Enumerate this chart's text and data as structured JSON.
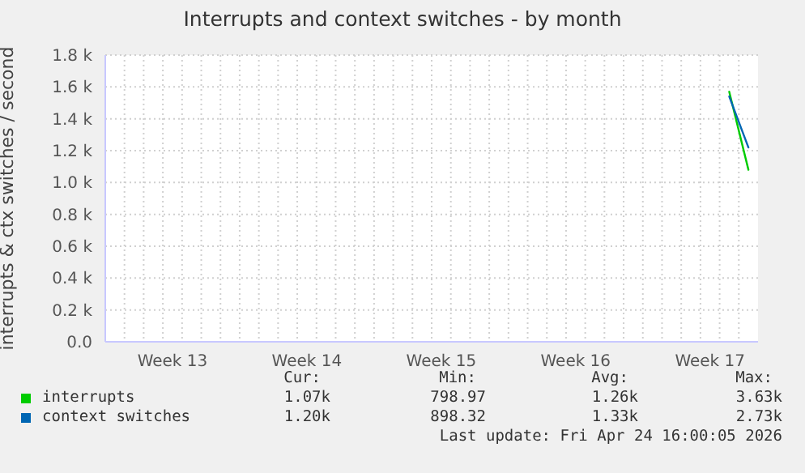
{
  "chart_data": {
    "type": "line",
    "title": "Interrupts and context switches - by month",
    "ylabel": "interrupts & ctx switches / second",
    "categories": [
      null,
      null,
      null,
      "Week 13",
      null,
      null,
      null,
      null,
      null,
      null,
      "Week 14",
      null,
      null,
      null,
      null,
      null,
      null,
      "Week 15",
      null,
      null,
      null,
      null,
      null,
      null,
      "Week 16",
      null,
      null,
      null,
      null,
      null,
      null,
      "Week 17",
      null,
      null
    ],
    "series": [
      {
        "name": "interrupts",
        "color": "#00cc00",
        "values": [
          null,
          null,
          null,
          null,
          null,
          null,
          null,
          null,
          null,
          null,
          null,
          null,
          null,
          null,
          null,
          null,
          null,
          null,
          null,
          null,
          null,
          null,
          null,
          null,
          null,
          null,
          null,
          null,
          null,
          null,
          null,
          null,
          1.57,
          1.08
        ]
      },
      {
        "name": "context switches",
        "color": "#0066b3",
        "values": [
          null,
          null,
          null,
          null,
          null,
          null,
          null,
          null,
          null,
          null,
          null,
          null,
          null,
          null,
          null,
          null,
          null,
          null,
          null,
          null,
          null,
          null,
          null,
          null,
          null,
          null,
          null,
          null,
          null,
          null,
          null,
          null,
          1.54,
          1.22
        ]
      }
    ],
    "ylim": [
      0,
      1.8
    ],
    "yticks": [
      {
        "value": 0,
        "label": "0.0"
      },
      {
        "value": 0.2,
        "label": "0.2 k"
      },
      {
        "value": 0.4,
        "label": "0.4 k"
      },
      {
        "value": 0.6,
        "label": "0.6 k"
      },
      {
        "value": 0.8,
        "label": "0.8 k"
      },
      {
        "value": 1.0,
        "label": "1.0 k"
      },
      {
        "value": 1.2,
        "label": "1.2 k"
      },
      {
        "value": 1.4,
        "label": "1.4 k"
      },
      {
        "value": 1.6,
        "label": "1.6 k"
      },
      {
        "value": 1.8,
        "label": "1.8 k"
      }
    ],
    "grid": true,
    "legend": "bottom",
    "marker": "none",
    "line_style": "solid",
    "annotations": [
      "Cur:",
      "Min:",
      "Avg:",
      "Max:",
      "1.07k",
      "798.97",
      "1.26k",
      "3.63k",
      "1.20k",
      "898.32",
      "1.33k",
      "2.73k",
      "Last update: Fri Apr 24 16:00:05 2026"
    ]
  }
}
